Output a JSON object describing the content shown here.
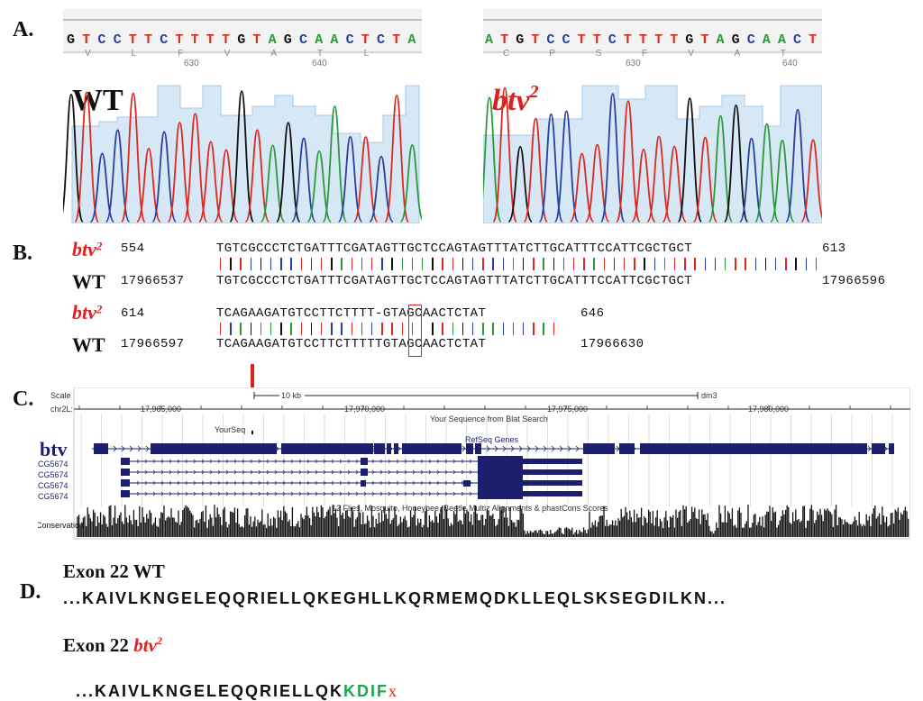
{
  "panel_labels": {
    "a": "A.",
    "b": "B.",
    "c": "C.",
    "d": "D."
  },
  "panel_a": {
    "left": {
      "seq": "GTCCTTCTTTTGTAGCAACTCTA",
      "aa": "V   L   F   V   A   T   L",
      "ticks": [
        "630",
        "640"
      ],
      "label": "WT"
    },
    "right": {
      "seq": "ATGTCCTTCTTTTGTAGCAACT",
      "aa": "C   P   S   F   V   A   T",
      "ticks": [
        "630",
        "640"
      ],
      "label": "btv",
      "label_sup": "2"
    }
  },
  "panel_b": {
    "rows": [
      {
        "label": "btv",
        "sup": "2",
        "pos_start": "554",
        "seq": "TGTCGCCCTCTGATTTCGATAGTTGCTCCAGTAGTTTATCTTGCATTTCCATTCGCTGCT",
        "pos_end": "613"
      },
      {
        "label": "WT",
        "sup": "",
        "pos_start": "17966537",
        "seq": "TGTCGCCCTCTGATTTCGATAGTTGCTCCAGTAGTTTATCTTGCATTTCCATTCGCTGCT",
        "pos_end": "17966596"
      },
      {
        "label": "btv",
        "sup": "2",
        "pos_start": "614",
        "seq": "TCAGAAGATGTCCTTCTTTT-GTAGCAACTCTAT",
        "pos_end": "646"
      },
      {
        "label": "WT",
        "sup": "",
        "pos_start": "17966597",
        "seq": "TCAGAAGATGTCCTTCTTTTTGTAGCAACTCTAT",
        "pos_end": "17966630"
      }
    ]
  },
  "panel_c": {
    "scale": "Scale",
    "chrom": "chr2L:",
    "scale_text": "10 kb",
    "assembly": "dm3",
    "coords": [
      "17,965,000",
      "17,970,000",
      "17,975,000",
      "17,980,000"
    ],
    "blat_title": "Your Sequence from Blat Search",
    "your_seq": "YourSeq",
    "refseq_title": "RefSeq Genes",
    "gene_label": "btv",
    "transcripts": [
      "CG5674",
      "CG5674",
      "CG5674",
      "CG5674"
    ],
    "multiz_title": "12 Flies, Mosquito, Honeybee, Beetle Multiz Alignments & phastCons Scores",
    "conservation": "Conservation"
  },
  "panel_d": {
    "wt_title": "Exon 22 WT",
    "wt_seq": "...KAIVLKNGELEQQRIELLQKEGHLLKQRMEMQDKLLEQLSKSEGDILKN...",
    "mut_title_prefix": "Exon 22 ",
    "mut_title_label": "btv",
    "mut_title_sup": "2",
    "mut_seq_black": "...KAIVLKNGELEQQRIELLQK",
    "mut_seq_green": "KDIF",
    "mut_seq_stop": "x"
  },
  "colors": {
    "A": "#2c9a3a",
    "C": "#2a3f9e",
    "G": "#111111",
    "T": "#e0281f",
    "red": "#e01f1f",
    "green": "#1aa84a",
    "gene": "#1c1f6e"
  }
}
